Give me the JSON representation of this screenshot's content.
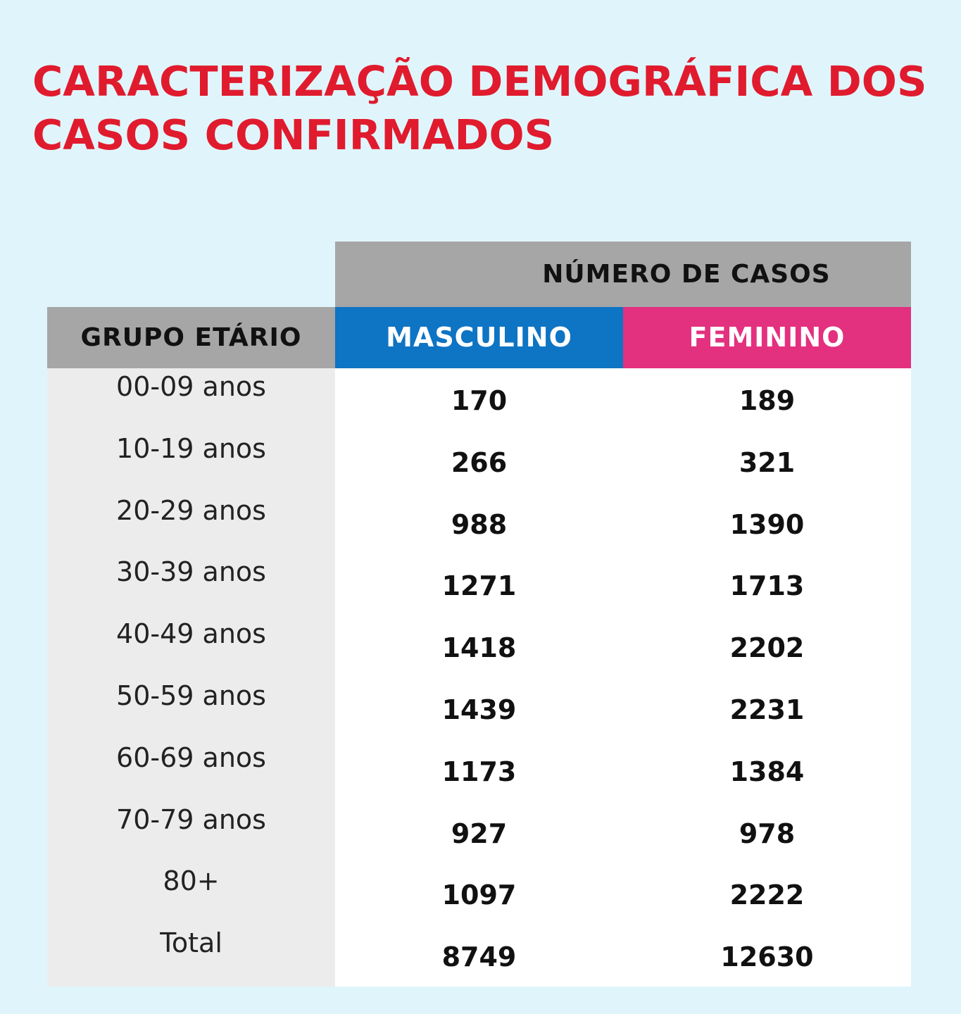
{
  "title": "CARACTERIZAÇÃO DEMOGRÁFICA DOS CASOS CONFIRMADOS",
  "chart_data": {
    "type": "table",
    "title": "CARACTERIZAÇÃO DEMOGRÁFICA DOS CASOS CONFIRMADOS",
    "header_group": "NÚMERO DE CASOS",
    "columns": [
      "GRUPO ETÁRIO",
      "MASCULINO",
      "FEMININO"
    ],
    "rows": [
      {
        "group": "00-09 anos",
        "masculino": "170",
        "feminino": "189"
      },
      {
        "group": "10-19 anos",
        "masculino": "266",
        "feminino": "321"
      },
      {
        "group": "20-29 anos",
        "masculino": "988",
        "feminino": "1390"
      },
      {
        "group": "30-39 anos",
        "masculino": "1271",
        "feminino": "1713"
      },
      {
        "group": "40-49 anos",
        "masculino": "1418",
        "feminino": "2202"
      },
      {
        "group": "50-59 anos",
        "masculino": "1439",
        "feminino": "2231"
      },
      {
        "group": "60-69 anos",
        "masculino": "1173",
        "feminino": "1384"
      },
      {
        "group": "70-79 anos",
        "masculino": "927",
        "feminino": "978"
      },
      {
        "group": "80+",
        "masculino": "1097",
        "feminino": "2222"
      },
      {
        "group": "Total",
        "masculino": "8749",
        "feminino": "12630"
      }
    ],
    "colors": {
      "title": "#e01b2e",
      "header_gray": "#a6a6a6",
      "masculino": "#0e74c4",
      "feminino": "#e3307f",
      "group_column": "#ececec",
      "background": "#e0f5fb"
    }
  }
}
